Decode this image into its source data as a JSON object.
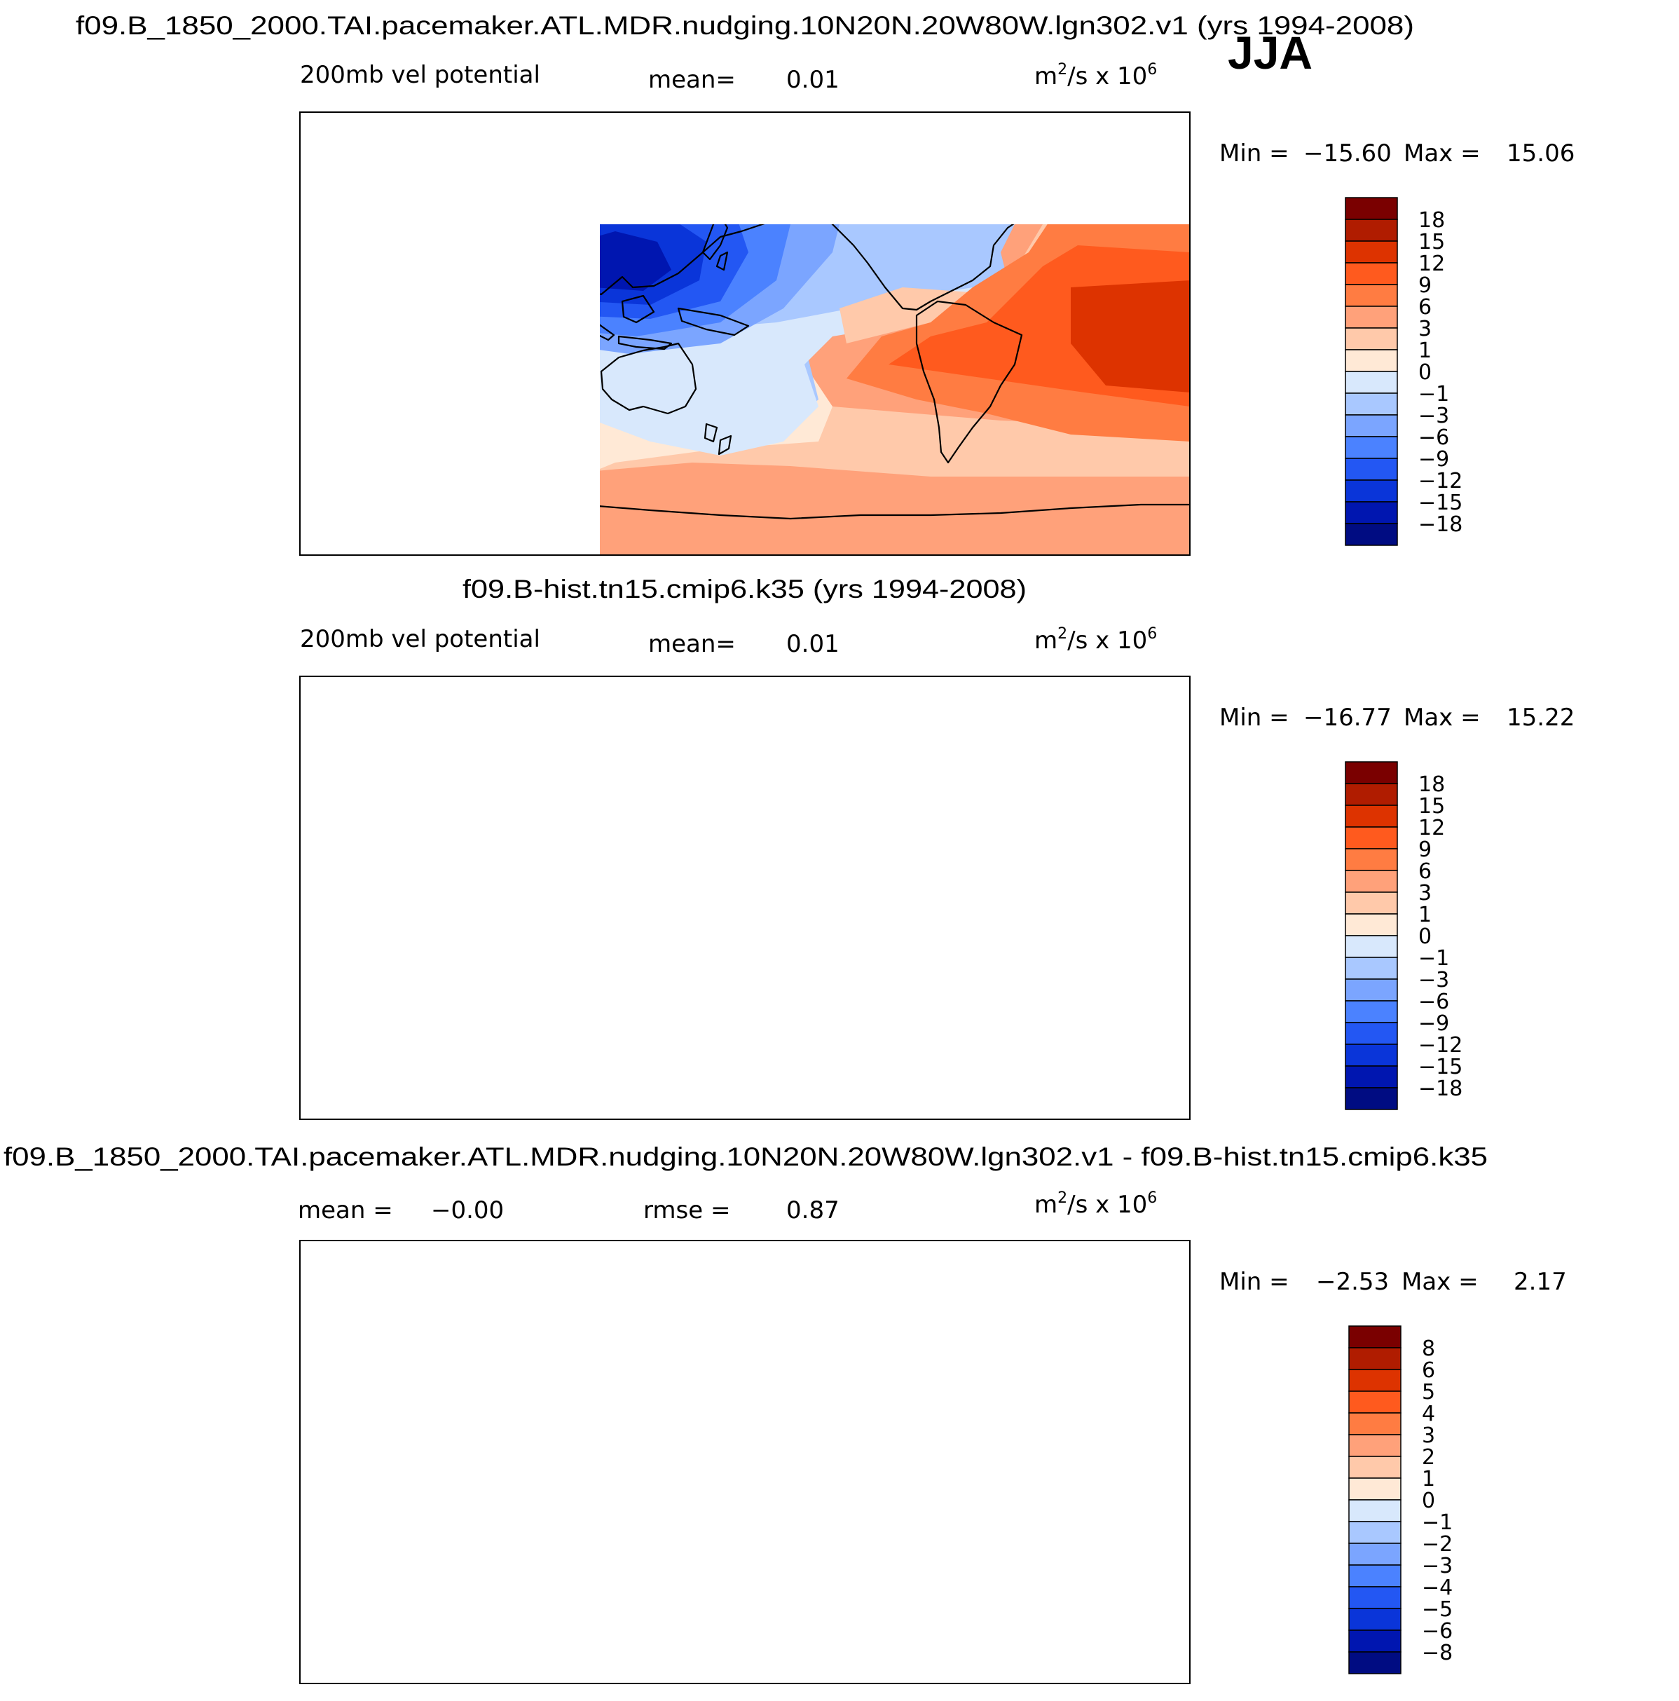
{
  "season": "JJA",
  "units_base": "m",
  "units_sup": "2",
  "units_mid": "/s x 10",
  "units_exp": "6",
  "chart_data": [
    {
      "type": "heatmap",
      "title": "f09.B_1850_2000.TAI.pacemaker.ATL.MDR.nudging.10N20N.20W80W.lgn302.v1 (yrs 1994-2008)",
      "left_label": "200mb vel potential",
      "mean_label": "mean=",
      "mean_value": "0.01",
      "min_label": "Min =",
      "min_value": "−15.60",
      "max_label": "Max =",
      "max_value": "15.06",
      "levels": [
        "18",
        "15",
        "12",
        "9",
        "6",
        "3",
        "1",
        "0",
        "−1",
        "−3",
        "−6",
        "−9",
        "−12",
        "−15",
        "−18"
      ],
      "colors": [
        "#7a0000",
        "#b01c00",
        "#dd3300",
        "#ff5a1e",
        "#ff7c42",
        "#ffa17a",
        "#ffc9aa",
        "#ffe9d6",
        "#d8e8fc",
        "#a9c8ff",
        "#7ba5ff",
        "#4b82ff",
        "#2357f3",
        "#0a35d9",
        "#0016b0",
        "#000c82"
      ]
    },
    {
      "type": "heatmap",
      "title": "f09.B-hist.tn15.cmip6.k35 (yrs 1994-2008)",
      "left_label": "200mb vel potential",
      "mean_label": "mean=",
      "mean_value": "0.01",
      "min_label": "Min =",
      "min_value": "−16.77",
      "max_label": "Max =",
      "max_value": "15.22",
      "levels": [
        "18",
        "15",
        "12",
        "9",
        "6",
        "3",
        "1",
        "0",
        "−1",
        "−3",
        "−6",
        "−9",
        "−12",
        "−15",
        "−18"
      ],
      "colors": [
        "#7a0000",
        "#b01c00",
        "#dd3300",
        "#ff5a1e",
        "#ff7c42",
        "#ffa17a",
        "#ffc9aa",
        "#ffe9d6",
        "#d8e8fc",
        "#a9c8ff",
        "#7ba5ff",
        "#4b82ff",
        "#2357f3",
        "#0a35d9",
        "#0016b0",
        "#000c82"
      ]
    },
    {
      "type": "heatmap",
      "title": "f09.B_1850_2000.TAI.pacemaker.ATL.MDR.nudging.10N20N.20W80W.lgn302.v1 - f09.B-hist.tn15.cmip6.k35",
      "left_label": "mean =",
      "left_value": "−0.00",
      "mean_label": "rmse =",
      "mean_value": "0.87",
      "min_label": "Min =",
      "min_value": "−2.53",
      "max_label": "Max =",
      "max_value": "2.17",
      "levels": [
        "8",
        "6",
        "5",
        "4",
        "3",
        "2",
        "1",
        "0",
        "−1",
        "−2",
        "−3",
        "−4",
        "−5",
        "−6",
        "−8"
      ],
      "colors": [
        "#7a0000",
        "#b01c00",
        "#dd3300",
        "#ff5a1e",
        "#ff7c42",
        "#ffa17a",
        "#ffc9aa",
        "#ffe9d6",
        "#d8e8fc",
        "#a9c8ff",
        "#7ba5ff",
        "#4b82ff",
        "#2357f3",
        "#0a35d9",
        "#0016b0",
        "#000c82"
      ]
    }
  ]
}
